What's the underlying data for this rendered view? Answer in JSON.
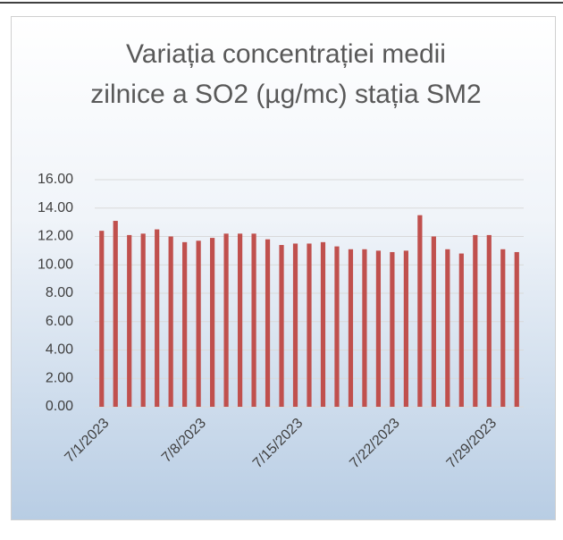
{
  "chart_data": {
    "type": "bar",
    "title": "Variația concentrației medii zilnice a SO2 (µg/mc) stația SM2",
    "categories": [
      "7/1/2023",
      null,
      null,
      null,
      null,
      null,
      null,
      "7/8/2023",
      null,
      null,
      null,
      null,
      null,
      null,
      "7/15/2023",
      null,
      null,
      null,
      null,
      null,
      null,
      "7/22/2023",
      null,
      null,
      null,
      null,
      null,
      null,
      "7/29/2023",
      null,
      null
    ],
    "values": [
      12.4,
      13.1,
      12.1,
      12.2,
      12.5,
      12.0,
      11.6,
      11.7,
      11.9,
      12.2,
      12.2,
      12.2,
      11.8,
      11.4,
      11.5,
      11.5,
      11.6,
      11.3,
      11.1,
      11.1,
      11.0,
      10.9,
      11.0,
      13.5,
      12.0,
      11.1,
      10.8,
      12.1,
      12.1,
      11.1,
      10.9
    ],
    "color": "#c0504d",
    "ylim": [
      0,
      16
    ],
    "yticks": [
      {
        "value": 0,
        "label": "0.00"
      },
      {
        "value": 2,
        "label": "2.00"
      },
      {
        "value": 4,
        "label": "4.00"
      },
      {
        "value": 6,
        "label": "6.00"
      },
      {
        "value": 8,
        "label": "8.00"
      },
      {
        "value": 10,
        "label": "10.00"
      },
      {
        "value": 12,
        "label": "12.00"
      },
      {
        "value": 14,
        "label": "14.00"
      },
      {
        "value": 16,
        "label": "16.00"
      }
    ],
    "grid": true
  }
}
